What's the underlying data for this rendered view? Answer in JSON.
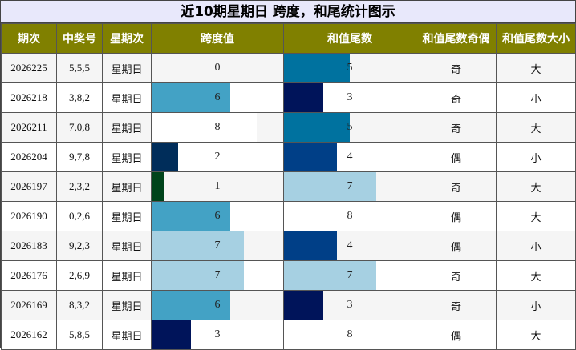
{
  "title": "近10期星期日 跨度，和尾统计图示",
  "headers": [
    "期次",
    "中奖号",
    "星期次",
    "跨度值",
    "和值尾数",
    "和值尾数奇偶",
    "和值尾数大小"
  ],
  "bar_max": 10,
  "bar_colors": [
    "#ffffff",
    "#00441b",
    "#002d5a",
    "#00145a",
    "#003f87",
    "#00729f",
    "#43a2c5",
    "#a6d0e2",
    "#ffffff",
    "#ffffff"
  ],
  "rows": [
    {
      "period": "2026225",
      "numbers": "5,5,5",
      "weekday": "星期日",
      "span": 0,
      "sum_tail": 5,
      "parity": "奇",
      "size": "大"
    },
    {
      "period": "2026218",
      "numbers": "3,8,2",
      "weekday": "星期日",
      "span": 6,
      "sum_tail": 3,
      "parity": "奇",
      "size": "小"
    },
    {
      "period": "2026211",
      "numbers": "7,0,8",
      "weekday": "星期日",
      "span": 8,
      "sum_tail": 5,
      "parity": "奇",
      "size": "大"
    },
    {
      "period": "2026204",
      "numbers": "9,7,8",
      "weekday": "星期日",
      "span": 2,
      "sum_tail": 4,
      "parity": "偶",
      "size": "小"
    },
    {
      "period": "2026197",
      "numbers": "2,3,2",
      "weekday": "星期日",
      "span": 1,
      "sum_tail": 7,
      "parity": "奇",
      "size": "大"
    },
    {
      "period": "2026190",
      "numbers": "0,2,6",
      "weekday": "星期日",
      "span": 6,
      "sum_tail": 8,
      "parity": "偶",
      "size": "大"
    },
    {
      "period": "2026183",
      "numbers": "9,2,3",
      "weekday": "星期日",
      "span": 7,
      "sum_tail": 4,
      "parity": "偶",
      "size": "小"
    },
    {
      "period": "2026176",
      "numbers": "2,6,9",
      "weekday": "星期日",
      "span": 7,
      "sum_tail": 7,
      "parity": "奇",
      "size": "大"
    },
    {
      "period": "2026169",
      "numbers": "8,3,2",
      "weekday": "星期日",
      "span": 6,
      "sum_tail": 3,
      "parity": "奇",
      "size": "小"
    },
    {
      "period": "2026162",
      "numbers": "5,8,5",
      "weekday": "星期日",
      "span": 3,
      "sum_tail": 8,
      "parity": "偶",
      "size": "大"
    }
  ]
}
